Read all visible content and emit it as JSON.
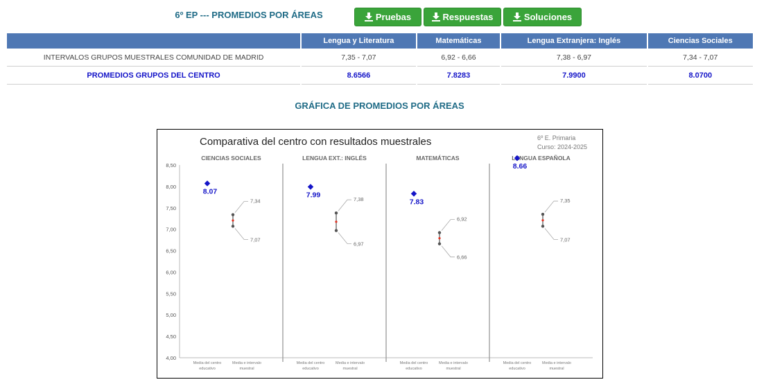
{
  "header": {
    "title": "6º EP --- PROMEDIOS POR ÁREAS",
    "buttons": [
      "Pruebas",
      "Respuestas",
      "Soluciones"
    ]
  },
  "table": {
    "columns": [
      "Lengua y Literatura",
      "Matemáticas",
      "Lengua Extranjera: Inglés",
      "Ciencias Sociales"
    ],
    "rows": [
      {
        "label": "INTERVALOS GRUPOS MUESTRALES COMUNIDAD DE MADRID",
        "values": [
          "7,35 - 7,07",
          "6,92 - 6,66",
          "7,38 - 6,97",
          "7,34 - 7,07"
        ]
      },
      {
        "label": "PROMEDIOS GRUPOS DEL CENTRO",
        "values": [
          "8.6566",
          "7.8283",
          "7.9900",
          "8.0700"
        ]
      }
    ]
  },
  "section_title": "GRÁFICA DE PROMEDIOS POR ÁREAS",
  "chart_data": {
    "type": "scatter",
    "title": "Comparativa del centro con resultados muestrales",
    "subtitle": [
      "6º E. Primaria",
      "Curso: 2024-2025"
    ],
    "ylim": [
      4.0,
      8.5
    ],
    "yticks": [
      "4,00",
      "4,50",
      "5,00",
      "5,50",
      "6,00",
      "6,50",
      "7,00",
      "7,50",
      "8,00",
      "8,50"
    ],
    "x_labels": [
      "Media del centro educativo",
      "Media e intervalo muestral"
    ],
    "grid": false,
    "panels": [
      {
        "name": "CIENCIAS SOCIALES",
        "centro": 8.07,
        "centro_label": "8.07",
        "max": 7.34,
        "min": 7.07,
        "max_label": "7,34",
        "min_label": "7,07"
      },
      {
        "name": "LENGUA EXT.: INGLÉS",
        "centro": 7.99,
        "centro_label": "7.99",
        "max": 7.38,
        "min": 6.97,
        "max_label": "7,38",
        "min_label": "6,97"
      },
      {
        "name": "MATEMÁTICAS",
        "centro": 7.83,
        "centro_label": "7.83",
        "max": 6.92,
        "min": 6.66,
        "max_label": "6,92",
        "min_label": "6,66"
      },
      {
        "name": "LENGUA ESPAÑOLA",
        "centro": 8.66,
        "centro_label": "8.66",
        "max": 7.35,
        "min": 7.07,
        "max_label": "7,35",
        "min_label": "7,07"
      }
    ],
    "colors": {
      "centro": "#1515c8",
      "interval": "#555555",
      "mean": "#e03020"
    }
  }
}
